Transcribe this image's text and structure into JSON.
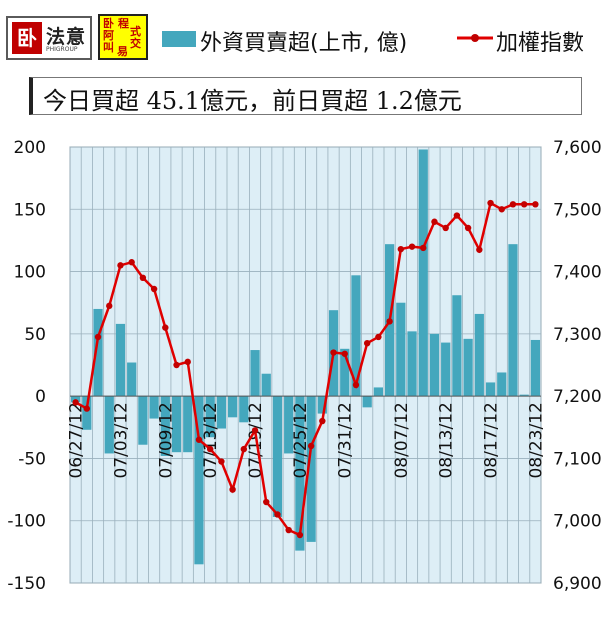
{
  "header": {
    "logo1_mark": "卧",
    "logo1_name": "法意",
    "logo1_sub": "PHIGROUP",
    "logo2_cells": [
      "卧",
      "程",
      "阿",
      "式",
      "叫",
      "交",
      "易"
    ],
    "legend_bar_label": "外資買賣超(上市, 億)",
    "legend_line_label": "加權指數",
    "summary": "今日買超 45.1億元，前日買超 1.2億元"
  },
  "colors": {
    "bar": "#44a7bd",
    "line": "#e00000",
    "plot_bg": "#ddeef6",
    "grid": "#9ab0bc"
  },
  "chart_data": {
    "type": "bar+line",
    "categories": [
      "06/27/12",
      "06/28/12",
      "06/29/12",
      "07/02/12",
      "07/03/12",
      "07/04/12",
      "07/05/12",
      "07/06/12",
      "07/09/12",
      "07/10/12",
      "07/11/12",
      "07/12/12",
      "07/13/12",
      "07/16/12",
      "07/17/12",
      "07/18/12",
      "07/19/12",
      "07/20/12",
      "07/23/12",
      "07/24/12",
      "07/25/12",
      "07/26/12",
      "07/27/12",
      "07/30/12",
      "07/31/12",
      "08/01/12",
      "08/02/12",
      "08/03/12",
      "08/06/12",
      "08/07/12",
      "08/08/12",
      "08/09/12",
      "08/10/12",
      "08/13/12",
      "08/14/12",
      "08/15/12",
      "08/16/12",
      "08/17/12",
      "08/20/12",
      "08/21/12",
      "08/22/12",
      "08/23/12"
    ],
    "tick_labels": [
      "06/27/12",
      "07/03/12",
      "07/09/12",
      "07/13/12",
      "07/19/12",
      "07/25/12",
      "07/31/12",
      "08/07/12",
      "08/13/12",
      "08/17/12",
      "08/23/12"
    ],
    "tick_indices": [
      0,
      4,
      8,
      12,
      16,
      20,
      24,
      29,
      33,
      37,
      41
    ],
    "series": [
      {
        "name": "外資買賣超(上市, 億)",
        "axis": "left",
        "kind": "bar",
        "values": [
          -5,
          -27,
          70,
          -46,
          58,
          27,
          -39,
          -18,
          -48,
          -45,
          -45,
          -135,
          -33,
          -26,
          -17,
          -21,
          37,
          18,
          -97,
          -46,
          -124,
          -117,
          -14,
          69,
          38,
          97,
          -9,
          7,
          122,
          75,
          52,
          198,
          50,
          43,
          81,
          46,
          66,
          11,
          19,
          122,
          1.2,
          45.1
        ]
      },
      {
        "name": "加權指數",
        "axis": "right",
        "kind": "line",
        "values": [
          7190,
          7180,
          7295,
          7345,
          7410,
          7415,
          7390,
          7372,
          7310,
          7250,
          7255,
          7130,
          7115,
          7095,
          7050,
          7115,
          7145,
          7030,
          7010,
          6985,
          6977,
          7120,
          7160,
          7270,
          7268,
          7218,
          7285,
          7295,
          7320,
          7436,
          7440,
          7438,
          7480,
          7470,
          7490,
          7470,
          7435,
          7510,
          7500,
          7508,
          7508,
          7508
        ]
      }
    ],
    "y_left": {
      "min": -150,
      "max": 200,
      "ticks": [
        -150,
        -100,
        -50,
        0,
        50,
        100,
        150,
        200
      ]
    },
    "y_right": {
      "min": 6900,
      "max": 7600,
      "ticks": [
        "6,900",
        "7,000",
        "7,100",
        "7,200",
        "7,300",
        "7,400",
        "7,500",
        "7,600"
      ]
    },
    "grid": true
  }
}
